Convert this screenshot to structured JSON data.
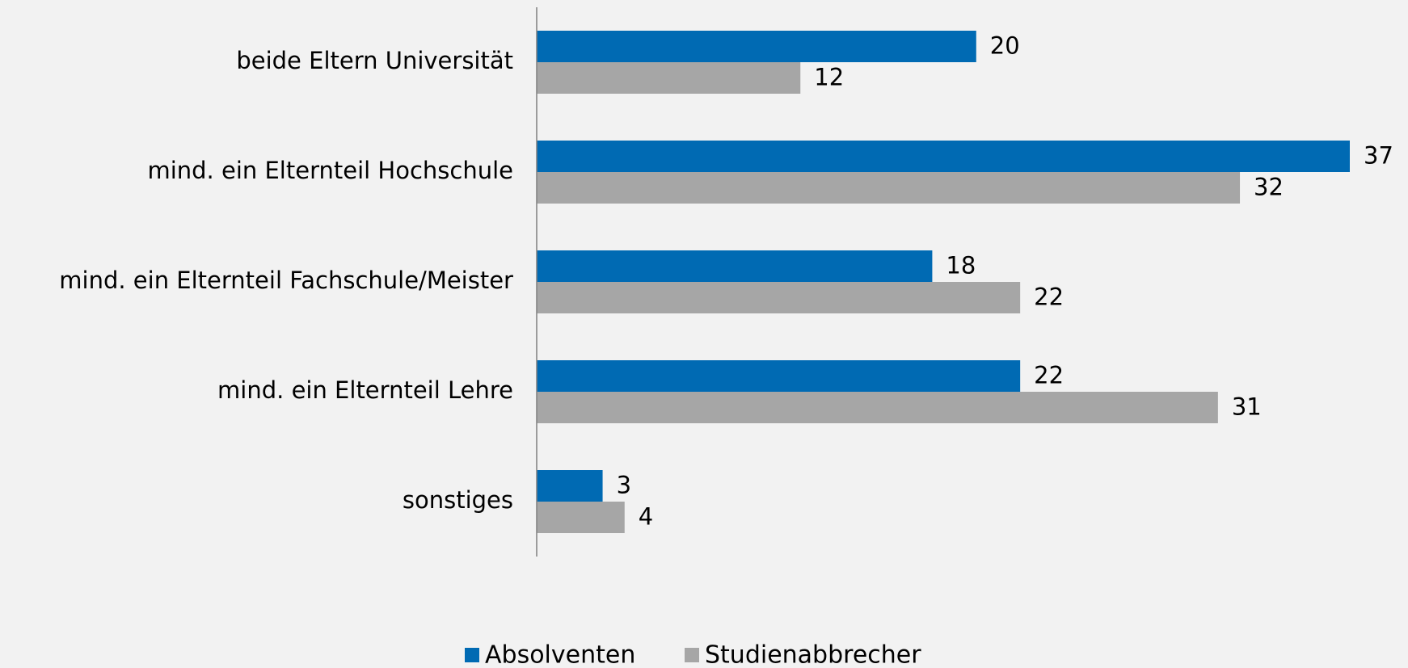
{
  "chart_data": {
    "type": "hbar",
    "categories": [
      "beide Eltern Universität",
      "mind. ein Elternteil Hochschule",
      "mind. ein Elternteil Fachschule/Meister",
      "mind. ein Elternteil Lehre",
      "sonstiges"
    ],
    "series": [
      {
        "name": "Absolventen",
        "color": "#006ab3",
        "values": [
          20,
          37,
          18,
          22,
          3
        ]
      },
      {
        "name": "Studienabbrecher",
        "color": "#a6a6a6",
        "values": [
          12,
          32,
          22,
          31,
          4
        ]
      }
    ]
  }
}
